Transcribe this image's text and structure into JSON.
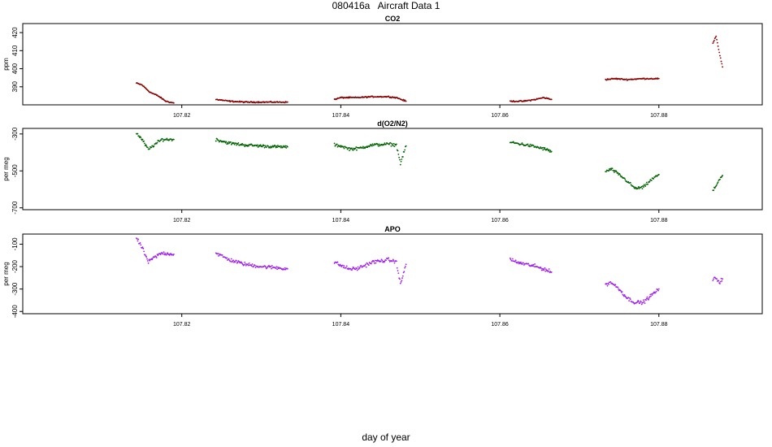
{
  "title": "080416a   Aircraft Data 1",
  "xlabel": "day of year",
  "chart_data": [
    {
      "type": "scatter",
      "title": "CO2",
      "ylabel": "ppm",
      "color": "#8b0000",
      "xlim": [
        107.8,
        107.893
      ],
      "ylim": [
        380,
        425
      ],
      "yticks": [
        390,
        400,
        410,
        420
      ],
      "ytick_labels": [
        "390",
        "400",
        "410",
        "420"
      ],
      "xticks": [
        107.82,
        107.84,
        107.86,
        107.88
      ],
      "xtick_labels": [
        "107.82",
        "107.84",
        "107.86",
        "107.88"
      ],
      "segments": [
        {
          "x": [
            107.8143,
            107.815,
            107.816,
            107.817,
            107.818,
            107.819
          ],
          "y": [
            392,
            391,
            387,
            385,
            382,
            381
          ]
        },
        {
          "x": [
            107.8243,
            107.826,
            107.828,
            107.83,
            107.832,
            107.8333
          ],
          "y": [
            383,
            382,
            381.5,
            381.5,
            381.5,
            381.5
          ]
        },
        {
          "x": [
            107.8392,
            107.84,
            107.842,
            107.844,
            107.846,
            107.847,
            107.8482
          ],
          "y": [
            383,
            384,
            384,
            384.5,
            384.5,
            384,
            382
          ]
        },
        {
          "x": [
            107.8613,
            107.863,
            107.8645,
            107.8655,
            107.8665
          ],
          "y": [
            382,
            382,
            383,
            384,
            383
          ]
        },
        {
          "x": [
            107.8733,
            107.8745,
            107.876,
            107.878,
            107.88
          ],
          "y": [
            394,
            394.5,
            394,
            394.5,
            394.5
          ]
        },
        {
          "x": [
            107.8868,
            107.8872,
            107.8876,
            107.888
          ],
          "y": [
            414,
            418,
            409,
            401
          ]
        }
      ],
      "noise": 0.5
    },
    {
      "type": "scatter",
      "title": "d(O2/N2)",
      "ylabel": "per meg",
      "color": "#006400",
      "xlim": [
        107.8,
        107.893
      ],
      "ylim": [
        -710,
        -270
      ],
      "yticks": [
        -300,
        -500,
        -700
      ],
      "ytick_labels": [
        "-300",
        "-500",
        "-700"
      ],
      "xticks": [
        107.82,
        107.84,
        107.86,
        107.88
      ],
      "xtick_labels": [
        "107.82",
        "107.84",
        "107.86",
        "107.88"
      ],
      "segments": [
        {
          "x": [
            107.8143,
            107.815,
            107.8158,
            107.8165,
            107.8175,
            107.819
          ],
          "y": [
            -295,
            -330,
            -385,
            -360,
            -330,
            -330
          ]
        },
        {
          "x": [
            107.8243,
            107.826,
            107.828,
            107.83,
            107.832,
            107.8333
          ],
          "y": [
            -330,
            -350,
            -360,
            -365,
            -370,
            -370
          ]
        },
        {
          "x": [
            107.8392,
            107.84,
            107.841,
            107.842,
            107.844,
            107.846,
            107.847,
            107.8475,
            107.8482
          ],
          "y": [
            -360,
            -365,
            -380,
            -380,
            -360,
            -355,
            -360,
            -460,
            -365
          ]
        },
        {
          "x": [
            107.8613,
            107.862,
            107.864,
            107.8655,
            107.8665
          ],
          "y": [
            -345,
            -350,
            -365,
            -380,
            -395
          ]
        },
        {
          "x": [
            107.8733,
            107.874,
            107.875,
            107.876,
            107.877,
            107.878,
            107.879,
            107.88
          ],
          "y": [
            -505,
            -490,
            -520,
            -555,
            -595,
            -590,
            -550,
            -520
          ]
        },
        {
          "x": [
            107.8868,
            107.8872,
            107.8876,
            107.888
          ],
          "y": [
            -610,
            -580,
            -545,
            -525
          ]
        }
      ],
      "noise": 12
    },
    {
      "type": "scatter",
      "title": "APO",
      "ylabel": "per meg",
      "color": "#a020f0",
      "xlim": [
        107.8,
        107.893
      ],
      "ylim": [
        -410,
        -55
      ],
      "yticks": [
        -100,
        -200,
        -300,
        -400
      ],
      "ytick_labels": [
        "-100",
        "-200",
        "-300",
        "-400"
      ],
      "xticks": [
        107.82,
        107.84,
        107.86,
        107.88
      ],
      "xtick_labels": [
        "107.82",
        "107.84",
        "107.86",
        "107.88"
      ],
      "segments": [
        {
          "x": [
            107.8143,
            107.815,
            107.8158,
            107.8165,
            107.8175,
            107.819
          ],
          "y": [
            -75,
            -115,
            -180,
            -160,
            -140,
            -145
          ]
        },
        {
          "x": [
            107.8243,
            107.826,
            107.828,
            107.83,
            107.832,
            107.8333
          ],
          "y": [
            -140,
            -170,
            -190,
            -200,
            -205,
            -210
          ]
        },
        {
          "x": [
            107.8392,
            107.84,
            107.841,
            107.842,
            107.844,
            107.846,
            107.847,
            107.8475,
            107.8482
          ],
          "y": [
            -180,
            -195,
            -210,
            -210,
            -180,
            -170,
            -180,
            -280,
            -190
          ]
        },
        {
          "x": [
            107.8613,
            107.862,
            107.864,
            107.8655,
            107.8665
          ],
          "y": [
            -165,
            -180,
            -195,
            -210,
            -225
          ]
        },
        {
          "x": [
            107.8733,
            107.874,
            107.875,
            107.876,
            107.877,
            107.878,
            107.879,
            107.88
          ],
          "y": [
            -280,
            -270,
            -300,
            -340,
            -360,
            -360,
            -330,
            -300
          ]
        },
        {
          "x": [
            107.8868,
            107.8872,
            107.8876,
            107.888
          ],
          "y": [
            -260,
            -250,
            -270,
            -255
          ]
        }
      ],
      "noise": 12
    }
  ]
}
